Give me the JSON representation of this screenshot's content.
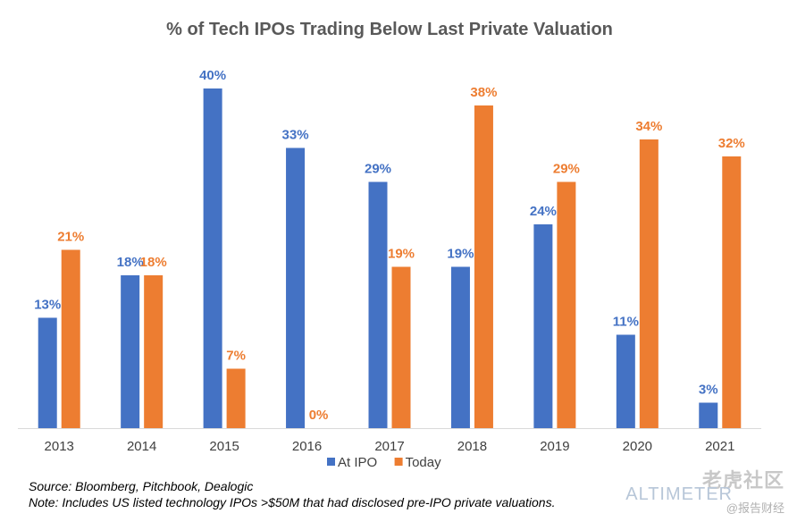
{
  "chart_data": {
    "type": "bar",
    "title": "% of Tech IPOs Trading Below Last Private Valuation",
    "categories": [
      "2013",
      "2014",
      "2015",
      "2016",
      "2017",
      "2018",
      "2019",
      "2020",
      "2021"
    ],
    "series": [
      {
        "name": "At IPO",
        "color": "#4472C4",
        "values": [
          13,
          18,
          40,
          33,
          29,
          19,
          24,
          11,
          3
        ]
      },
      {
        "name": "Today",
        "color": "#ED7D31",
        "values": [
          21,
          18,
          7,
          0,
          19,
          38,
          29,
          34,
          32
        ]
      }
    ],
    "value_suffix": "%",
    "ylim": [
      0,
      42
    ],
    "grid": false,
    "legend_position": "bottom"
  },
  "notes": {
    "source": "Source: Bloomberg, Pitchbook, Dealogic",
    "note": "Note: Includes US listed technology IPOs >$50M that had disclosed pre-IPO private valuations."
  },
  "watermark": {
    "cn": "老虎社区",
    "logo": "ALTIMETER",
    "sub": "@报告财经"
  }
}
